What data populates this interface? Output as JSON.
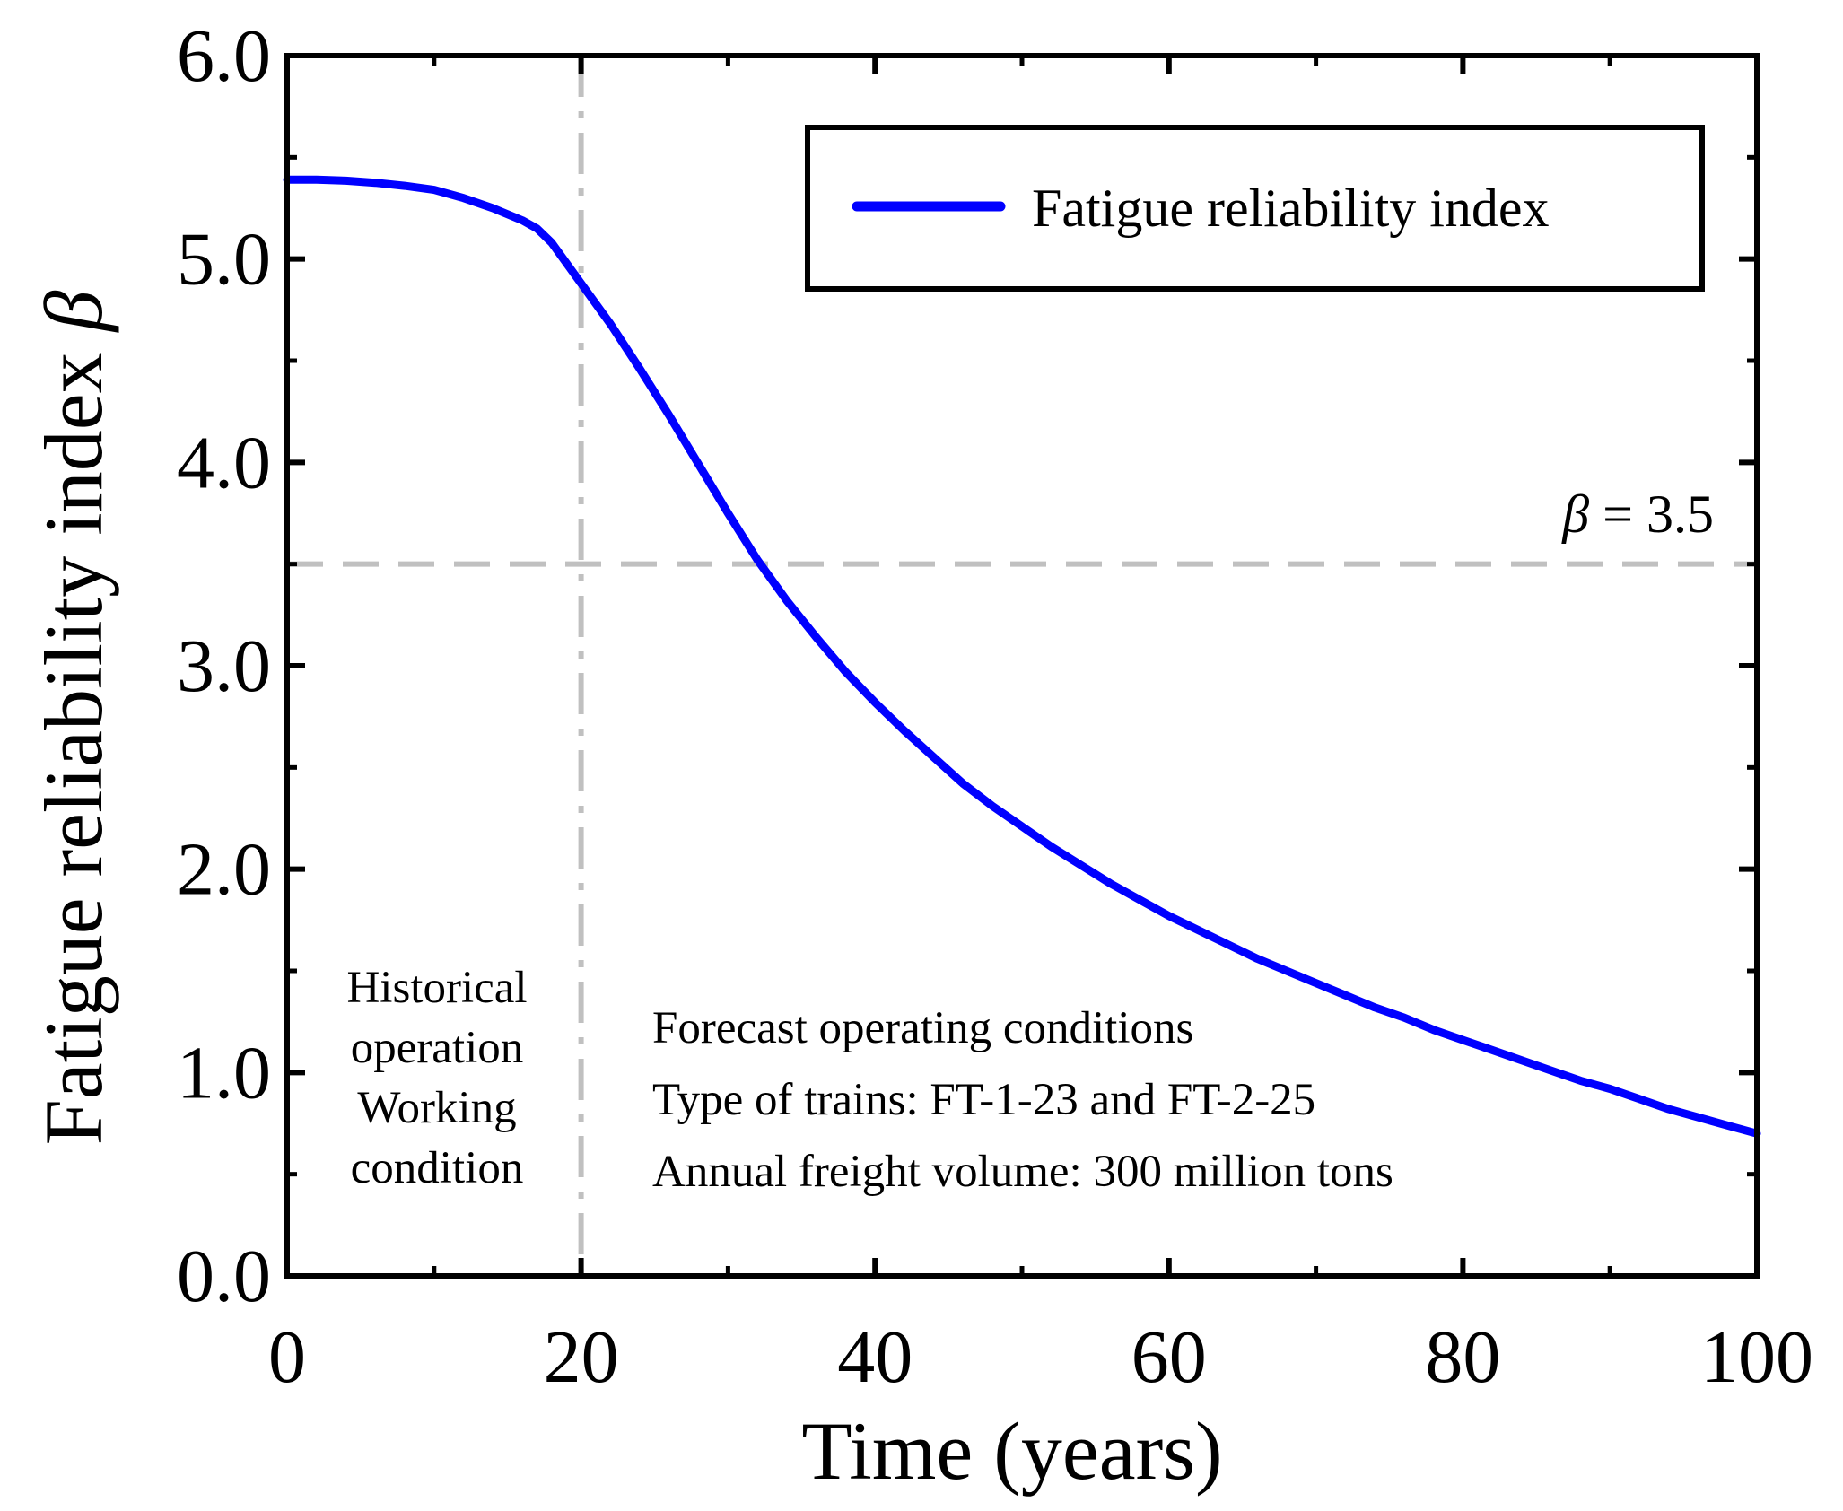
{
  "chart_data": {
    "type": "line",
    "title": "",
    "xlabel": "Time  (years)",
    "ylabel": "Fatigue reliability index",
    "ylabel_symbol": "β",
    "xlim": [
      0,
      100
    ],
    "ylim": [
      0.0,
      6.0
    ],
    "x_ticks": [
      0,
      20,
      40,
      60,
      80,
      100
    ],
    "x_tick_labels": [
      "0",
      "20",
      "40",
      "60",
      "80",
      "100"
    ],
    "y_ticks": [
      0.0,
      1.0,
      2.0,
      3.0,
      4.0,
      5.0,
      6.0
    ],
    "y_tick_labels": [
      "0.0",
      "1.0",
      "2.0",
      "3.0",
      "4.0",
      "5.0",
      "6.0"
    ],
    "x_minor_step": 10,
    "y_minor_step": 0.5,
    "grid": false,
    "legend_position": "top-right",
    "series": [
      {
        "name": "Fatigue reliability index",
        "color": "#0000ff",
        "x": [
          0,
          2,
          4,
          6,
          8,
          10,
          12,
          14,
          16,
          17,
          18,
          20,
          22,
          24,
          26,
          28,
          30,
          32,
          34,
          36,
          38,
          40,
          42,
          44,
          46,
          48,
          50,
          52,
          54,
          56,
          58,
          60,
          62,
          64,
          66,
          68,
          70,
          72,
          74,
          76,
          78,
          80,
          82,
          84,
          86,
          88,
          90,
          92,
          94,
          96,
          98,
          100
        ],
        "y": [
          5.39,
          5.39,
          5.385,
          5.375,
          5.36,
          5.34,
          5.3,
          5.25,
          5.19,
          5.15,
          5.08,
          4.88,
          4.68,
          4.46,
          4.23,
          3.99,
          3.75,
          3.52,
          3.32,
          3.14,
          2.97,
          2.82,
          2.68,
          2.55,
          2.42,
          2.31,
          2.21,
          2.11,
          2.02,
          1.93,
          1.85,
          1.77,
          1.7,
          1.63,
          1.56,
          1.5,
          1.44,
          1.38,
          1.32,
          1.27,
          1.21,
          1.16,
          1.11,
          1.06,
          1.01,
          0.96,
          0.92,
          0.87,
          0.82,
          0.78,
          0.74,
          0.7
        ]
      }
    ],
    "reference_lines": [
      {
        "orientation": "horizontal",
        "value": 3.5,
        "style": "dashed",
        "color": "#c0c0c0",
        "label": "β = 3.5"
      },
      {
        "orientation": "vertical",
        "value": 20,
        "style": "dash-dot",
        "color": "#c0c0c0"
      }
    ],
    "annotations": {
      "historical": [
        "Historical",
        "operation",
        "Working",
        "condition"
      ],
      "forecast": [
        "Forecast operating conditions",
        "Type of trains: FT-1-23 and FT-2-25",
        "Annual freight volume: 300 million tons"
      ]
    }
  }
}
